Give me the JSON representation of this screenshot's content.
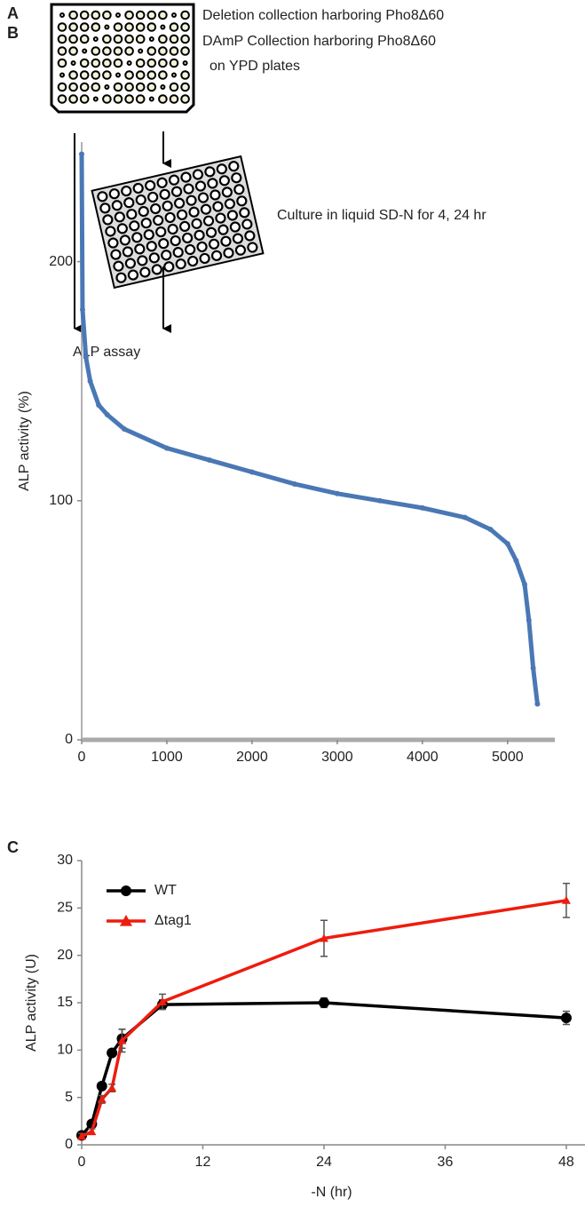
{
  "diagram": {
    "panel_label": "A",
    "plate_texts": [
      "Deletion collection harboring Pho8Δ60",
      "DAmP Collection harboring Pho8Δ60",
      "on YPD plates"
    ],
    "culture_text": "Culture in liquid SD-N for 4, 24 hr",
    "assay_text": "ALP assay"
  },
  "chart_data": [
    {
      "type": "line",
      "panel_label": "B",
      "ylabel": "ALP activity (%)",
      "color": "#4a78b5",
      "marker": "dot",
      "x": [
        0,
        10,
        50,
        100,
        200,
        300,
        500,
        1000,
        1500,
        2000,
        2500,
        3000,
        3500,
        4000,
        4500,
        4800,
        5000,
        5100,
        5200,
        5250,
        5300,
        5350
      ],
      "values": [
        245,
        180,
        160,
        150,
        140,
        136,
        130,
        122,
        117,
        112,
        107,
        103,
        100,
        97,
        93,
        88,
        82,
        75,
        65,
        50,
        30,
        15
      ],
      "xlim": [
        0,
        5450
      ],
      "xticks": [
        0,
        1000,
        2000,
        3000,
        4000,
        5000
      ],
      "ylim": [
        0,
        250
      ],
      "yticks": [
        0,
        100,
        200
      ]
    },
    {
      "type": "line",
      "panel_label": "C",
      "ylabel": "ALP activity (U)",
      "xlabel": "-N (hr)",
      "legend": "upper left",
      "x": [
        0,
        1,
        2,
        3,
        4,
        8,
        24,
        48
      ],
      "series": [
        {
          "name": "WT",
          "color": "#000000",
          "marker": "circle",
          "values": [
            1,
            2.2,
            6.2,
            9.7,
            11.2,
            14.8,
            15,
            13.4
          ],
          "errors": [
            0.3,
            0.3,
            0.3,
            0.3,
            1.0,
            0.5,
            0.5,
            0.7
          ]
        },
        {
          "name": "Δtag1",
          "color": "#ee1c0e",
          "marker": "triangle",
          "values": [
            0.9,
            1.4,
            4.8,
            6.0,
            11.0,
            15.1,
            21.8,
            25.8
          ],
          "errors": [
            0.3,
            0.3,
            0.4,
            0.4,
            1.2,
            0.8,
            1.9,
            1.8
          ]
        }
      ],
      "xlim": [
        0,
        49.5
      ],
      "xticks": [
        0,
        12,
        24,
        36,
        48
      ],
      "ylim": [
        0,
        30
      ],
      "yticks": [
        0,
        5,
        10,
        15,
        20,
        25,
        30
      ]
    }
  ]
}
